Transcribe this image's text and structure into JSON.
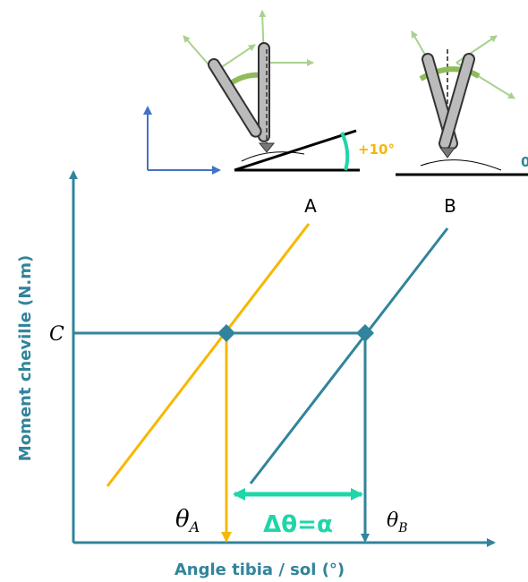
{
  "diagram": {
    "angle_a": "+10°",
    "angle_b": "0",
    "line_a_label": "A",
    "line_b_label": "B",
    "moment_label": "C",
    "theta_a": {
      "symbol": "θ",
      "sub": "A"
    },
    "theta_b": {
      "symbol": "θ",
      "sub": "B"
    },
    "delta": "Δθ=α",
    "y_axis_label": "Moment cheville (N.m)",
    "x_axis_label": "Angle tibia / sol (°)"
  }
}
